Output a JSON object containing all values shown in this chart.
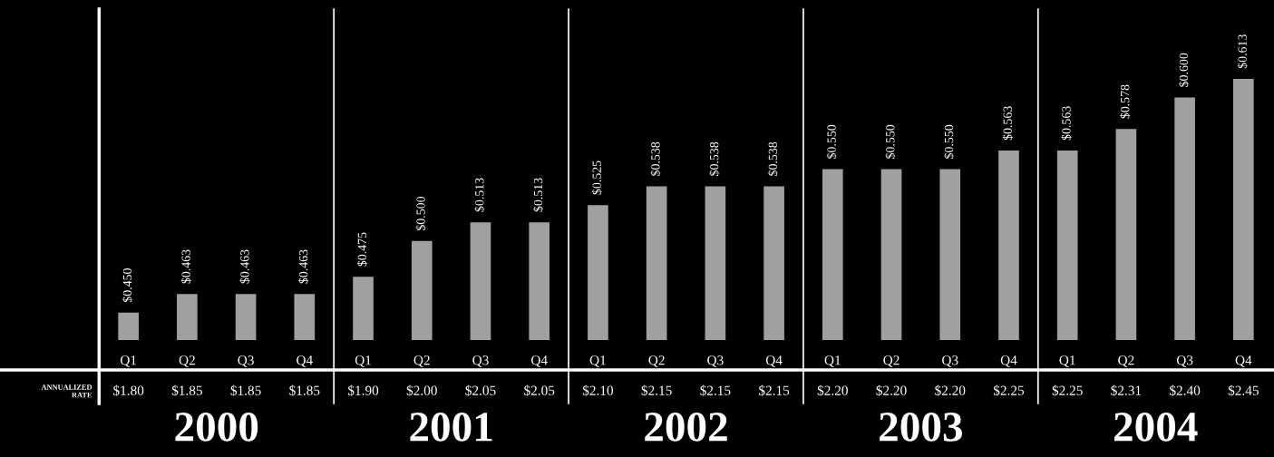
{
  "chart_data": {
    "type": "bar",
    "categories": [
      "Q1",
      "Q2",
      "Q3",
      "Q4",
      "Q1",
      "Q2",
      "Q3",
      "Q4",
      "Q1",
      "Q2",
      "Q3",
      "Q4",
      "Q1",
      "Q2",
      "Q3",
      "Q4",
      "Q1",
      "Q2",
      "Q3",
      "Q4"
    ],
    "values": [
      0.45,
      0.463,
      0.463,
      0.463,
      0.475,
      0.5,
      0.513,
      0.513,
      0.525,
      0.538,
      0.538,
      0.538,
      0.55,
      0.55,
      0.55,
      0.563,
      0.563,
      0.578,
      0.6,
      0.613
    ],
    "value_labels": [
      "$0.450",
      "$0.463",
      "$0.463",
      "$0.463",
      "$0.475",
      "$0.500",
      "$0.513",
      "$0.513",
      "$0.525",
      "$0.538",
      "$0.538",
      "$0.538",
      "$0.550",
      "$0.550",
      "$0.550",
      "$0.563",
      "$0.563",
      "$0.578",
      "$0.600",
      "$0.613"
    ],
    "color": "#a0a0a0",
    "tick_labels": "x",
    "annotations": [
      "ANNUALIZED RATE",
      "$1.80",
      "$1.85",
      "$1.85",
      "$1.85",
      "$1.90",
      "$2.00",
      "$2.05",
      "$2.05",
      "$2.10",
      "$2.15",
      "$2.15",
      "$2.15",
      "$2.20",
      "$2.20",
      "$2.20",
      "$2.25",
      "$2.25",
      "$2.31",
      "$2.40",
      "$2.45",
      "2000",
      "2001",
      "2002",
      "2003",
      "2004"
    ]
  }
}
